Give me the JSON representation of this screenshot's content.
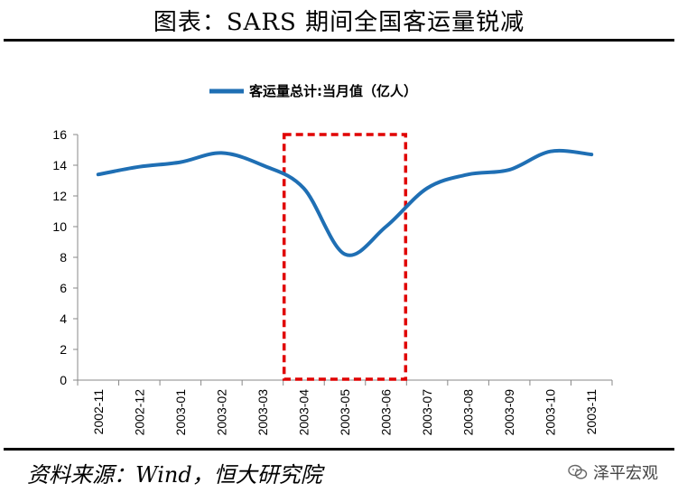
{
  "title": "图表：SARS 期间全国客运量锐减",
  "source": "资料来源：Wind，恒大研究院",
  "brand": "泽平宏观",
  "chart_data": {
    "type": "line",
    "title": "",
    "xlabel": "",
    "ylabel": "",
    "categories": [
      "2002-11",
      "2002-12",
      "2003-01",
      "2003-02",
      "2003-03",
      "2003-04",
      "2003-05",
      "2003-06",
      "2003-07",
      "2003-08",
      "2003-09",
      "2003-10",
      "2003-11"
    ],
    "series": [
      {
        "name": "客运量总计:当月值（亿人）",
        "color": "#1f6fb4",
        "values": [
          13.4,
          13.9,
          14.2,
          14.8,
          14.0,
          12.5,
          8.2,
          10.0,
          12.5,
          13.4,
          13.7,
          14.9,
          14.7
        ]
      }
    ],
    "ylim": [
      0,
      16
    ],
    "yticks": [
      0,
      2,
      4,
      6,
      8,
      10,
      12,
      14,
      16
    ],
    "grid": false,
    "legend_position": "top-center",
    "highlight": {
      "from": "2003-04",
      "to": "2003-06",
      "color": "#e00000",
      "style": "dashed"
    }
  }
}
